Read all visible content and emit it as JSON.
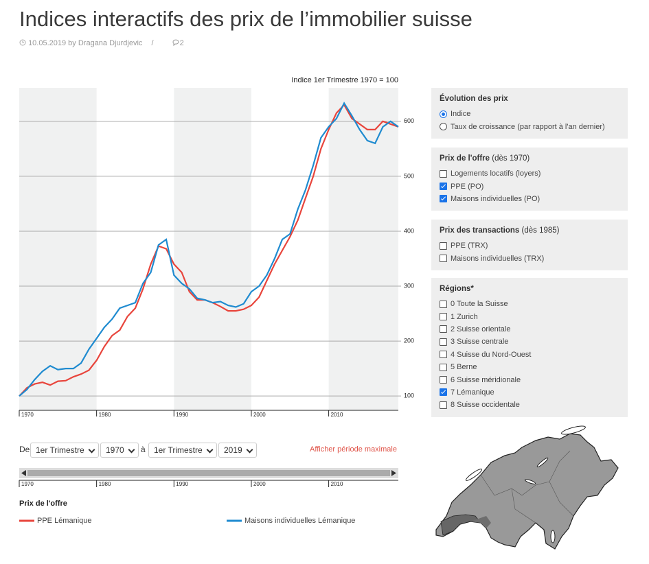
{
  "header": {
    "title": "Indices interactifs des prix de l’immobilier suisse",
    "meta": "10.05.2019 by Dragana Djurdjevic",
    "separator": "/",
    "comments": "2"
  },
  "chart_data": {
    "type": "line",
    "annotation": "Indice 1er Trimestre 1970 = 100",
    "x": [
      1970,
      1971,
      1972,
      1973,
      1974,
      1975,
      1976,
      1977,
      1978,
      1979,
      1980,
      1981,
      1982,
      1983,
      1984,
      1985,
      1986,
      1987,
      1988,
      1989,
      1990,
      1991,
      1992,
      1993,
      1994,
      1995,
      1996,
      1997,
      1998,
      1999,
      2000,
      2001,
      2002,
      2003,
      2004,
      2005,
      2006,
      2007,
      2008,
      2009,
      2010,
      2011,
      2012,
      2013,
      2014,
      2015,
      2016,
      2017,
      2018,
      2019
    ],
    "series": [
      {
        "name": "PPE Lémanique",
        "color": "#e8453c",
        "values": [
          100,
          115,
          122,
          125,
          120,
          127,
          128,
          135,
          140,
          147,
          165,
          190,
          210,
          220,
          245,
          260,
          295,
          340,
          373,
          368,
          340,
          325,
          290,
          275,
          275,
          270,
          263,
          255,
          255,
          258,
          265,
          280,
          310,
          340,
          365,
          390,
          420,
          460,
          500,
          550,
          585,
          615,
          630,
          605,
          595,
          585,
          585,
          600,
          595,
          590
        ]
      },
      {
        "name": "Maisons individuelles Lémanique",
        "color": "#1f8bd0",
        "values": [
          100,
          112,
          130,
          145,
          155,
          148,
          150,
          150,
          160,
          185,
          205,
          225,
          240,
          260,
          265,
          270,
          305,
          325,
          375,
          385,
          320,
          305,
          295,
          278,
          275,
          270,
          272,
          265,
          262,
          268,
          290,
          300,
          320,
          350,
          385,
          395,
          440,
          475,
          520,
          570,
          590,
          605,
          633,
          610,
          585,
          565,
          560,
          590,
          600,
          590
        ]
      }
    ],
    "legend_title": "Prix de l'offre",
    "xlim": [
      1970,
      2019
    ],
    "xticks": [
      1970,
      1980,
      1990,
      2000,
      2010
    ],
    "ylim": [
      74,
      661
    ],
    "yticks": [
      100,
      200,
      300,
      400,
      500,
      600
    ],
    "grid": true
  },
  "controls": {
    "from_label": "De",
    "from_period": "1er Trimestre",
    "from_year": "1970",
    "to_label": "à",
    "to_period": "1er Trimestre",
    "to_year": "2019",
    "reset": "Afficher période maximale"
  },
  "sidebar": {
    "groups": [
      {
        "title": "Évolution des prix",
        "input": "radio",
        "options": [
          {
            "label": "Indice",
            "checked": true
          },
          {
            "label": "Taux de croissance (par rapport à l'an dernier)",
            "checked": false
          }
        ]
      },
      {
        "title": "Prix de l'offre",
        "note": "(dès 1970)",
        "input": "checkbox",
        "options": [
          {
            "label": "Logements locatifs (loyers)",
            "checked": false
          },
          {
            "label": "PPE (PO)",
            "checked": true
          },
          {
            "label": "Maisons individuelles (PO)",
            "checked": true
          }
        ]
      },
      {
        "title": "Prix des transactions",
        "note": "(dès 1985)",
        "input": "checkbox",
        "options": [
          {
            "label": "PPE (TRX)",
            "checked": false
          },
          {
            "label": "Maisons individuelles (TRX)",
            "checked": false
          }
        ]
      },
      {
        "title": "Régions*",
        "input": "checkbox",
        "options": [
          {
            "label": "0 Toute la Suisse",
            "checked": false
          },
          {
            "label": "1 Zurich",
            "checked": false
          },
          {
            "label": "2 Suisse orientale",
            "checked": false
          },
          {
            "label": "3 Suisse centrale",
            "checked": false
          },
          {
            "label": "4 Suisse du Nord-Ouest",
            "checked": false
          },
          {
            "label": "5 Berne",
            "checked": false
          },
          {
            "label": "6 Suisse méridionale",
            "checked": false
          },
          {
            "label": "7 Lémanique",
            "checked": true
          },
          {
            "label": "8 Suisse occidentale",
            "checked": false
          }
        ]
      }
    ]
  }
}
